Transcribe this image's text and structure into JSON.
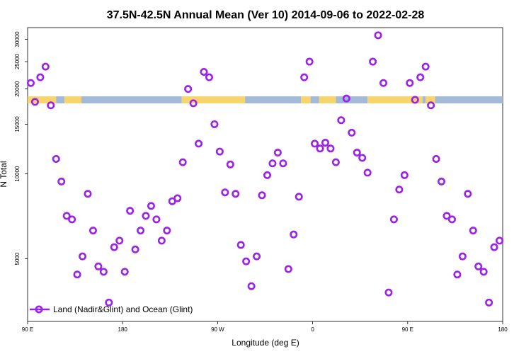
{
  "chart_data": {
    "type": "scatter",
    "title": "37.5N-42.5N Annual Mean (Ver 10)   2014-09-06 to 2022-02-28",
    "xlabel": "Longitude (deg E)",
    "ylabel": "N Total",
    "x_ticks": [
      {
        "value": 90,
        "label": "90 E"
      },
      {
        "value": 180,
        "label": "180"
      },
      {
        "value": 270,
        "label": "90 W"
      },
      {
        "value": 360,
        "label": "0"
      },
      {
        "value": 450,
        "label": "90 E"
      },
      {
        "value": 540,
        "label": "180"
      }
    ],
    "xlim": [
      90,
      540
    ],
    "y_scale": "log",
    "y_ticks": [
      5000,
      10000,
      15000,
      20000,
      25000,
      30000
    ],
    "ylim": [
      3000,
      33000
    ],
    "grid": false,
    "legend_position": "bottom-left",
    "series": [
      {
        "name": "Land (Nadir&Glint) and Ocean (Glint)",
        "color": "#9b22e8",
        "marker": "open-circle",
        "points": [
          [
            93,
            21000
          ],
          [
            97,
            18000
          ],
          [
            102,
            22000
          ],
          [
            107,
            24000
          ],
          [
            112,
            17500
          ],
          [
            117,
            11300
          ],
          [
            122,
            9400
          ],
          [
            127,
            7100
          ],
          [
            132,
            6900
          ],
          [
            137,
            4400
          ],
          [
            142,
            5100
          ],
          [
            147,
            8500
          ],
          [
            152,
            6300
          ],
          [
            157,
            4700
          ],
          [
            162,
            4500
          ],
          [
            167,
            3500
          ],
          [
            172,
            5500
          ],
          [
            177,
            5800
          ],
          [
            182,
            4500
          ],
          [
            187,
            7400
          ],
          [
            192,
            5400
          ],
          [
            197,
            6300
          ],
          [
            202,
            7100
          ],
          [
            207,
            7700
          ],
          [
            212,
            6900
          ],
          [
            217,
            5800
          ],
          [
            222,
            6300
          ],
          [
            227,
            8000
          ],
          [
            232,
            8200
          ],
          [
            237,
            11000
          ],
          [
            242,
            20000
          ],
          [
            247,
            17800
          ],
          [
            252,
            12800
          ],
          [
            257,
            23000
          ],
          [
            262,
            22000
          ],
          [
            267,
            15000
          ],
          [
            272,
            12000
          ],
          [
            277,
            8600
          ],
          [
            282,
            10800
          ],
          [
            287,
            8500
          ],
          [
            292,
            5600
          ],
          [
            297,
            4900
          ],
          [
            302,
            4000
          ],
          [
            307,
            5100
          ],
          [
            312,
            8400
          ],
          [
            317,
            9900
          ],
          [
            322,
            10900
          ],
          [
            327,
            11900
          ],
          [
            332,
            10900
          ],
          [
            337,
            4600
          ],
          [
            342,
            6100
          ],
          [
            347,
            8300
          ],
          [
            352,
            22000
          ],
          [
            357,
            25000
          ],
          [
            362,
            12800
          ],
          [
            367,
            12300
          ],
          [
            372,
            12900
          ],
          [
            377,
            12300
          ],
          [
            382,
            11000
          ],
          [
            387,
            15500
          ],
          [
            392,
            18500
          ],
          [
            397,
            14000
          ],
          [
            402,
            11900
          ],
          [
            407,
            11400
          ],
          [
            412,
            10100
          ],
          [
            417,
            25000
          ],
          [
            422,
            31000
          ],
          [
            427,
            21000
          ],
          [
            432,
            3800
          ],
          [
            437,
            6900
          ],
          [
            442,
            8800
          ],
          [
            447,
            9900
          ],
          [
            452,
            21000
          ],
          [
            457,
            18300
          ],
          [
            462,
            22000
          ],
          [
            467,
            24000
          ],
          [
            472,
            17500
          ],
          [
            477,
            11300
          ],
          [
            482,
            9400
          ],
          [
            487,
            7100
          ],
          [
            492,
            6900
          ],
          [
            497,
            4400
          ],
          [
            502,
            5100
          ],
          [
            507,
            8500
          ],
          [
            512,
            6300
          ],
          [
            517,
            4700
          ],
          [
            522,
            4500
          ],
          [
            527,
            3500
          ],
          [
            532,
            5500
          ],
          [
            537,
            5800
          ]
        ]
      }
    ],
    "surface_strip": {
      "y_value": 18300,
      "land_color": "#f8d46c",
      "ocean_color": "#a3b9d8",
      "segments": [
        {
          "type": "land",
          "from": 90,
          "to": 117
        },
        {
          "type": "ocean",
          "from": 117,
          "to": 125
        },
        {
          "type": "land",
          "from": 125,
          "to": 141
        },
        {
          "type": "ocean",
          "from": 141,
          "to": 236
        },
        {
          "type": "land",
          "from": 236,
          "to": 296
        },
        {
          "type": "ocean",
          "from": 296,
          "to": 349
        },
        {
          "type": "land",
          "from": 349,
          "to": 358
        },
        {
          "type": "ocean",
          "from": 358,
          "to": 366
        },
        {
          "type": "land",
          "from": 366,
          "to": 382
        },
        {
          "type": "ocean",
          "from": 382,
          "to": 412
        },
        {
          "type": "land",
          "from": 412,
          "to": 464
        },
        {
          "type": "ocean",
          "from": 464,
          "to": 467
        },
        {
          "type": "land",
          "from": 467,
          "to": 476
        },
        {
          "type": "ocean",
          "from": 476,
          "to": 540
        }
      ]
    }
  }
}
